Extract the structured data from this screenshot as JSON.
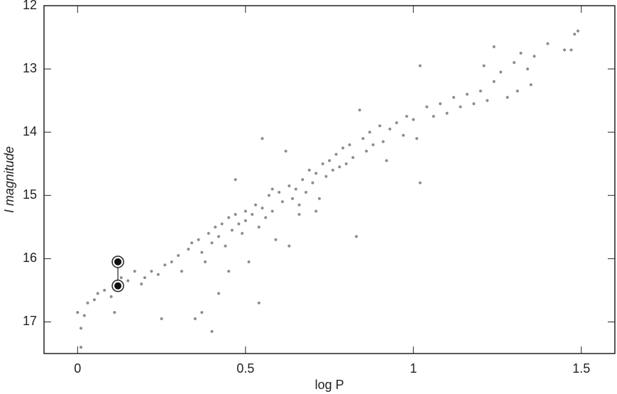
{
  "chart_data": {
    "type": "scatter",
    "x_label": "log P",
    "y_label": "I  magnitude",
    "xlim": [
      -0.1,
      1.6
    ],
    "ylim": [
      17.5,
      12
    ],
    "xticks": [
      0,
      0.5,
      1,
      1.5
    ],
    "yticks": [
      12,
      13,
      14,
      15,
      16,
      17
    ],
    "color": "#8c8c8c",
    "x": [
      0.0,
      0.01,
      0.01,
      0.02,
      0.03,
      0.05,
      0.06,
      0.08,
      0.1,
      0.11,
      0.13,
      0.15,
      0.17,
      0.19,
      0.2,
      0.22,
      0.24,
      0.25,
      0.26,
      0.28,
      0.3,
      0.31,
      0.33,
      0.34,
      0.35,
      0.36,
      0.37,
      0.38,
      0.39,
      0.4,
      0.4,
      0.41,
      0.42,
      0.43,
      0.44,
      0.45,
      0.46,
      0.47,
      0.47,
      0.48,
      0.49,
      0.5,
      0.5,
      0.51,
      0.52,
      0.53,
      0.54,
      0.55,
      0.55,
      0.56,
      0.57,
      0.58,
      0.59,
      0.6,
      0.61,
      0.62,
      0.63,
      0.64,
      0.65,
      0.66,
      0.67,
      0.68,
      0.69,
      0.7,
      0.71,
      0.72,
      0.73,
      0.74,
      0.75,
      0.76,
      0.77,
      0.78,
      0.79,
      0.8,
      0.81,
      0.82,
      0.83,
      0.84,
      0.85,
      0.86,
      0.87,
      0.88,
      0.9,
      0.91,
      0.92,
      0.93,
      0.95,
      0.97,
      0.98,
      1.0,
      1.01,
      1.02,
      1.02,
      1.04,
      1.06,
      1.08,
      1.1,
      1.12,
      1.14,
      1.16,
      1.18,
      1.2,
      1.21,
      1.22,
      1.24,
      1.24,
      1.26,
      1.28,
      1.3,
      1.31,
      1.32,
      1.34,
      1.35,
      1.36,
      1.4,
      1.45,
      1.47,
      1.48,
      1.49,
      0.63,
      0.54,
      0.45,
      0.42,
      0.58,
      0.66,
      0.71,
      0.37
    ],
    "values": [
      16.85,
      17.1,
      17.4,
      16.9,
      16.7,
      16.65,
      16.55,
      16.5,
      16.6,
      16.85,
      16.3,
      16.35,
      16.2,
      16.4,
      16.3,
      16.2,
      16.25,
      16.95,
      16.1,
      16.05,
      15.95,
      16.2,
      15.85,
      15.75,
      16.95,
      15.7,
      15.9,
      16.05,
      15.6,
      17.15,
      15.75,
      15.5,
      15.65,
      15.45,
      15.8,
      15.35,
      15.55,
      14.75,
      15.3,
      15.45,
      15.6,
      15.25,
      15.4,
      16.05,
      15.3,
      15.15,
      15.5,
      15.2,
      14.1,
      15.35,
      15.0,
      15.25,
      15.7,
      14.95,
      15.1,
      14.3,
      14.85,
      15.05,
      14.9,
      15.3,
      14.75,
      14.95,
      14.6,
      14.8,
      14.65,
      15.05,
      14.5,
      14.7,
      14.45,
      14.6,
      14.35,
      14.55,
      14.25,
      14.5,
      14.2,
      14.4,
      15.65,
      13.65,
      14.1,
      14.3,
      14.0,
      14.2,
      13.9,
      14.15,
      14.45,
      13.95,
      13.85,
      14.05,
      13.75,
      13.8,
      14.1,
      14.8,
      12.95,
      13.6,
      13.75,
      13.55,
      13.7,
      13.45,
      13.6,
      13.4,
      13.55,
      13.35,
      12.95,
      13.5,
      13.2,
      12.65,
      13.05,
      13.45,
      12.9,
      13.35,
      12.75,
      13.0,
      13.25,
      12.8,
      12.6,
      12.7,
      12.7,
      12.45,
      12.4,
      15.8,
      16.7,
      16.2,
      16.55,
      14.9,
      15.15,
      15.25,
      16.85
    ],
    "highlight": {
      "x": [
        0.12,
        0.12
      ],
      "values": [
        16.05,
        16.43
      ]
    }
  }
}
